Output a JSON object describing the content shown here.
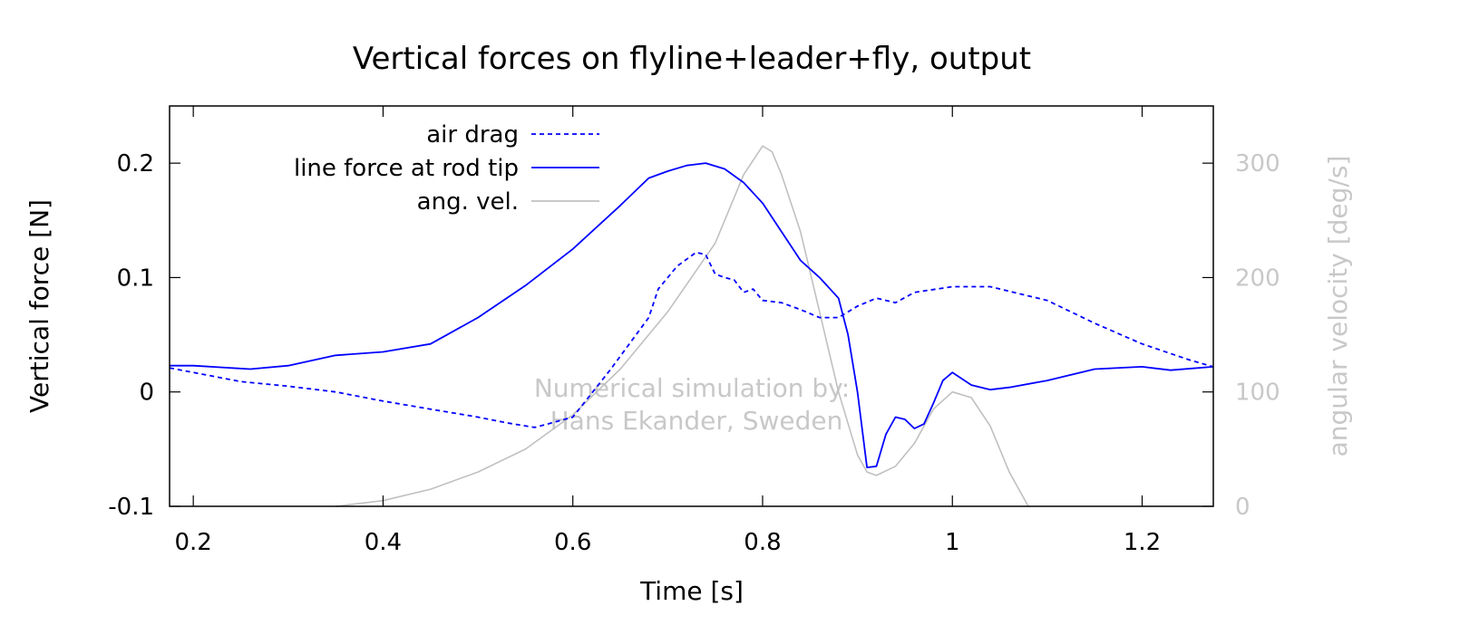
{
  "chart_data": {
    "type": "line",
    "title": "Vertical forces on flyline+leader+fly, output",
    "xlabel": "Time [s]",
    "ylabel": "Vertical force [N]",
    "y2label": "angular velocity [deg/s]",
    "xlim": [
      0.175,
      1.275
    ],
    "ylim": [
      -0.1,
      0.25
    ],
    "y2lim": [
      0,
      350
    ],
    "x_ticks": [
      0.2,
      0.4,
      0.6,
      0.8,
      1.0,
      1.2
    ],
    "x_tick_labels": [
      "0.2",
      "0.4",
      "0.6",
      "0.8",
      "1",
      "1.2"
    ],
    "y_ticks": [
      -0.1,
      0,
      0.1,
      0.2
    ],
    "y_tick_labels": [
      "-0.1",
      "0",
      "0.1",
      "0.2"
    ],
    "y2_ticks": [
      0,
      100,
      200,
      300
    ],
    "y2_tick_labels": [
      "0",
      "100",
      "200",
      "300"
    ],
    "grid": false,
    "legend_position": "top-left",
    "watermark": [
      "Numerical simulation by:",
      "Hans Ekander, Sweden"
    ],
    "series": [
      {
        "name": "air drag",
        "axis": "left",
        "style": "dashed",
        "color": "#0000ff",
        "points": [
          [
            0.175,
            0.021
          ],
          [
            0.2,
            0.017
          ],
          [
            0.25,
            0.009
          ],
          [
            0.3,
            0.005
          ],
          [
            0.35,
            0.0
          ],
          [
            0.4,
            -0.008
          ],
          [
            0.45,
            -0.015
          ],
          [
            0.5,
            -0.022
          ],
          [
            0.53,
            -0.027
          ],
          [
            0.56,
            -0.031
          ],
          [
            0.6,
            -0.022
          ],
          [
            0.64,
            0.02
          ],
          [
            0.68,
            0.065
          ],
          [
            0.69,
            0.09
          ],
          [
            0.71,
            0.11
          ],
          [
            0.73,
            0.122
          ],
          [
            0.74,
            0.12
          ],
          [
            0.75,
            0.103
          ],
          [
            0.76,
            0.1
          ],
          [
            0.77,
            0.098
          ],
          [
            0.78,
            0.087
          ],
          [
            0.79,
            0.09
          ],
          [
            0.8,
            0.08
          ],
          [
            0.82,
            0.078
          ],
          [
            0.84,
            0.072
          ],
          [
            0.86,
            0.065
          ],
          [
            0.88,
            0.065
          ],
          [
            0.9,
            0.075
          ],
          [
            0.92,
            0.082
          ],
          [
            0.94,
            0.078
          ],
          [
            0.96,
            0.087
          ],
          [
            1.0,
            0.092
          ],
          [
            1.04,
            0.092
          ],
          [
            1.1,
            0.08
          ],
          [
            1.15,
            0.06
          ],
          [
            1.2,
            0.042
          ],
          [
            1.25,
            0.028
          ],
          [
            1.275,
            0.022
          ]
        ]
      },
      {
        "name": "line force at rod tip",
        "axis": "left",
        "style": "solid",
        "color": "#0000ff",
        "points": [
          [
            0.175,
            0.023
          ],
          [
            0.2,
            0.023
          ],
          [
            0.26,
            0.02
          ],
          [
            0.3,
            0.023
          ],
          [
            0.35,
            0.032
          ],
          [
            0.4,
            0.035
          ],
          [
            0.45,
            0.042
          ],
          [
            0.5,
            0.065
          ],
          [
            0.55,
            0.093
          ],
          [
            0.6,
            0.125
          ],
          [
            0.65,
            0.163
          ],
          [
            0.68,
            0.187
          ],
          [
            0.7,
            0.193
          ],
          [
            0.72,
            0.198
          ],
          [
            0.74,
            0.2
          ],
          [
            0.76,
            0.195
          ],
          [
            0.78,
            0.183
          ],
          [
            0.8,
            0.165
          ],
          [
            0.82,
            0.14
          ],
          [
            0.84,
            0.115
          ],
          [
            0.86,
            0.1
          ],
          [
            0.88,
            0.082
          ],
          [
            0.89,
            0.05
          ],
          [
            0.9,
            0.0
          ],
          [
            0.91,
            -0.066
          ],
          [
            0.92,
            -0.065
          ],
          [
            0.93,
            -0.037
          ],
          [
            0.94,
            -0.022
          ],
          [
            0.95,
            -0.024
          ],
          [
            0.96,
            -0.032
          ],
          [
            0.97,
            -0.028
          ],
          [
            0.98,
            -0.01
          ],
          [
            0.99,
            0.01
          ],
          [
            1.0,
            0.017
          ],
          [
            1.02,
            0.006
          ],
          [
            1.04,
            0.002
          ],
          [
            1.06,
            0.004
          ],
          [
            1.1,
            0.01
          ],
          [
            1.15,
            0.02
          ],
          [
            1.2,
            0.022
          ],
          [
            1.23,
            0.019
          ],
          [
            1.275,
            0.022
          ]
        ]
      },
      {
        "name": "ang. vel.",
        "axis": "right",
        "style": "solid",
        "color": "#c0c0c0",
        "points": [
          [
            0.35,
            0
          ],
          [
            0.4,
            5
          ],
          [
            0.45,
            15
          ],
          [
            0.5,
            30
          ],
          [
            0.55,
            50
          ],
          [
            0.6,
            80
          ],
          [
            0.65,
            120
          ],
          [
            0.7,
            170
          ],
          [
            0.75,
            230
          ],
          [
            0.78,
            290
          ],
          [
            0.8,
            315
          ],
          [
            0.81,
            310
          ],
          [
            0.82,
            290
          ],
          [
            0.84,
            240
          ],
          [
            0.86,
            170
          ],
          [
            0.88,
            100
          ],
          [
            0.9,
            45
          ],
          [
            0.91,
            30
          ],
          [
            0.92,
            27
          ],
          [
            0.94,
            35
          ],
          [
            0.96,
            55
          ],
          [
            0.98,
            85
          ],
          [
            1.0,
            100
          ],
          [
            1.02,
            95
          ],
          [
            1.04,
            70
          ],
          [
            1.06,
            30
          ],
          [
            1.08,
            0
          ]
        ]
      }
    ]
  }
}
